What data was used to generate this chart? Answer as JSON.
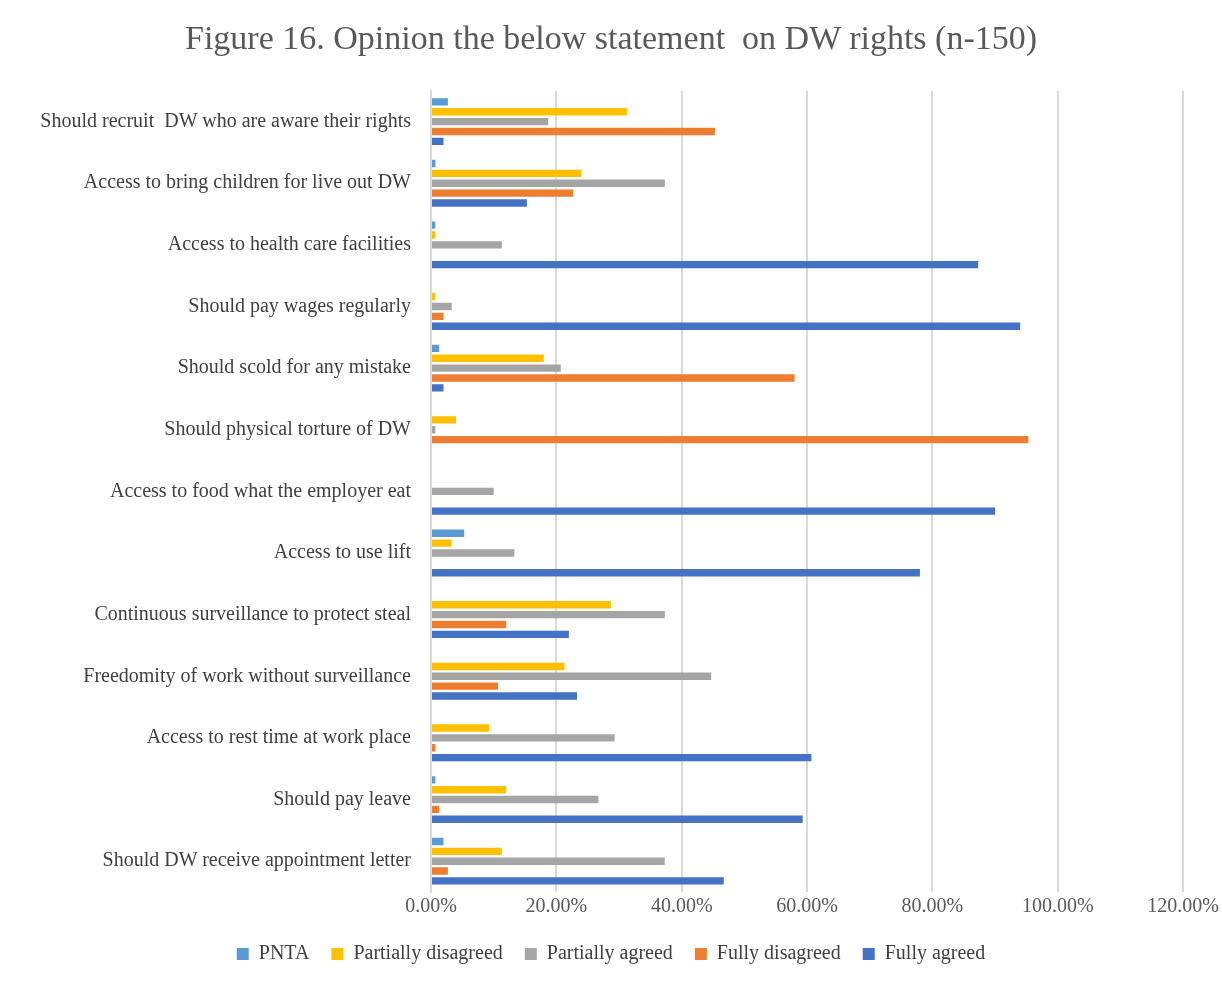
{
  "chart_data": {
    "type": "bar",
    "orientation": "horizontal",
    "title": "Figure 16. Opinion the below statement  on DW rights (n-150)",
    "categories": [
      "Should recruit  DW who are aware their rights",
      "Access to bring children for live out DW",
      "Access to health care facilities",
      "Should pay wages regularly",
      "Should scold for any mistake",
      "Should physical torture of DW",
      "Access to food what the employer eat",
      "Access to use lift",
      "Continuous surveillance to protect steal",
      "Freedomity of work without surveillance",
      "Access to rest time at work place",
      "Should pay leave",
      "Should DW receive appointment letter"
    ],
    "series": [
      {
        "name": "PNTA",
        "color": "#5b9bd5",
        "values": [
          2.7,
          0.7,
          0.7,
          null,
          1.3,
          null,
          null,
          5.3,
          null,
          null,
          null,
          0.7,
          2.0
        ]
      },
      {
        "name": "Partially disagreed",
        "color": "#ffc000",
        "values": [
          31.3,
          24.0,
          0.7,
          0.7,
          18.0,
          4.0,
          null,
          3.3,
          28.7,
          21.3,
          9.3,
          12.0,
          11.3
        ]
      },
      {
        "name": "Partially agreed",
        "color": "#a5a5a5",
        "values": [
          18.7,
          37.3,
          11.3,
          3.3,
          20.7,
          0.7,
          10.0,
          13.3,
          37.3,
          44.7,
          29.3,
          26.7,
          37.3
        ]
      },
      {
        "name": "Fully disagreed",
        "color": "#ed7d31",
        "values": [
          45.3,
          22.7,
          null,
          2.0,
          58.0,
          95.3,
          null,
          null,
          12.0,
          10.7,
          0.7,
          1.3,
          2.7
        ]
      },
      {
        "name": "Fully agreed",
        "color": "#4472c4",
        "values": [
          2.0,
          15.3,
          87.3,
          94.0,
          2.0,
          null,
          90.0,
          78.0,
          22.0,
          23.3,
          60.7,
          59.3,
          46.7
        ]
      }
    ],
    "xlim": [
      0,
      120
    ],
    "xticks": [
      {
        "value": 0,
        "label": "0.00%"
      },
      {
        "value": 20,
        "label": "20.00%"
      },
      {
        "value": 40,
        "label": "40.00%"
      },
      {
        "value": 60,
        "label": "60.00%"
      },
      {
        "value": 80,
        "label": "80.00%"
      },
      {
        "value": 100,
        "label": "100.00%"
      },
      {
        "value": 120,
        "label": "120.00%"
      }
    ],
    "grid": "x",
    "legend": "bottom"
  }
}
